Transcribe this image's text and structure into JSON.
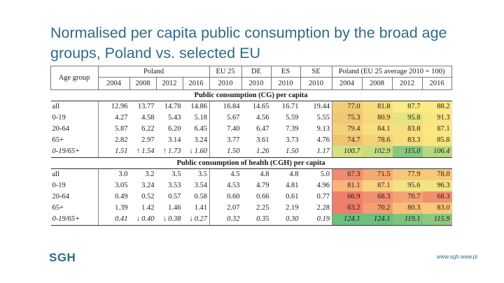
{
  "slide": {
    "title": "Normalised per capita public consumption by the broad age groups, Poland vs. selected EU",
    "logo_text": "SGH",
    "url": "www.sgh.waw.pl"
  },
  "table": {
    "header": {
      "age_group": "Age group",
      "poland": "Poland",
      "eu25": "EU 25",
      "de": "DE",
      "es": "ES",
      "se": "SE",
      "index": "Poland (EU 25 average 2010 = 100)",
      "years": [
        "2004",
        "2008",
        "2012",
        "2016",
        "2010",
        "2010",
        "2010",
        "2010",
        "2004",
        "2008",
        "2012",
        "2016"
      ]
    },
    "section1": "Public consumption (CG) per capita",
    "section2": "Public consumption of health (CGH) per capita",
    "rows1": [
      {
        "label": "all",
        "values": [
          "12.96",
          "13.77",
          "14.78",
          "14.86",
          "16.84",
          "14.65",
          "16.71",
          "19.44",
          "77.0",
          "81.8",
          "87.7",
          "88.2"
        ]
      },
      {
        "label": "0-19",
        "values": [
          "4.27",
          "4.58",
          "5.43",
          "5.18",
          "5.67",
          "4.56",
          "5.59",
          "5.55",
          "75.3",
          "80.9",
          "95.8",
          "91.3"
        ]
      },
      {
        "label": "20-64",
        "values": [
          "5.87",
          "6.22",
          "6.20",
          "6.45",
          "7.40",
          "6.47",
          "7.39",
          "9.13",
          "79.4",
          "84.1",
          "83.8",
          "87.1"
        ]
      },
      {
        "label": "65+",
        "values": [
          "2.82",
          "2.97",
          "3.14",
          "3.24",
          "3.77",
          "3.61",
          "3.73",
          "4.76",
          "74.7",
          "78.6",
          "83.3",
          "85.8"
        ]
      }
    ],
    "ratio1": {
      "label": "0-19/65+",
      "arrows": [
        "",
        "↑",
        "↑",
        "↓"
      ],
      "values": [
        "1.51",
        "1.54",
        "1.73",
        "1.60",
        "1.50",
        "1.26",
        "1.50",
        "1.17",
        "100.7",
        "102.9",
        "115.0",
        "106.4"
      ]
    },
    "rows2": [
      {
        "label": "all",
        "values": [
          "3.0",
          "3.2",
          "3.5",
          "3.5",
          "4.5",
          "4.8",
          "4.8",
          "5.0",
          "67.3",
          "71.5",
          "77.9",
          "78.0"
        ]
      },
      {
        "label": "0-19",
        "values": [
          "3.05",
          "3.24",
          "3.53",
          "3.54",
          "4.53",
          "4.79",
          "4.81",
          "4.96",
          "81.1",
          "87.1",
          "95.6",
          "96.3"
        ]
      },
      {
        "label": "20-64",
        "values": [
          "0.49",
          "0.52",
          "0.57",
          "0.58",
          "0.60",
          "0.66",
          "0.61",
          "0.77",
          "66.9",
          "68.3",
          "70.7",
          "68.3"
        ]
      },
      {
        "label": "65+",
        "values": [
          "1.39",
          "1.42",
          "1.46",
          "1.41",
          "2.07",
          "2.25",
          "2.19",
          "2.28",
          "63.2",
          "70.2",
          "80.3",
          "83.0"
        ]
      }
    ],
    "ratio2": {
      "label": "0-19/65+",
      "arrows": [
        "",
        "↓",
        "↓",
        "↓"
      ],
      "values": [
        "0.41",
        "0.40",
        "0.38",
        "0.27",
        "0.32",
        "0.35",
        "0.30",
        "0.19",
        "124.1",
        "124.1",
        "119.1",
        "115.9"
      ]
    },
    "colors": {
      "rows1": [
        [
          "#f2cd78",
          "#f8dd7e",
          "#fdeb84",
          "#fcea84"
        ],
        [
          "#f1c675",
          "#f7d97d",
          "#e2e483",
          "#f9e583"
        ],
        [
          "#f3d179",
          "#f9df7e",
          "#f9de7e",
          "#fbe782"
        ],
        [
          "#f0c274",
          "#f5d27a",
          "#f9dd7e",
          "#fbe380"
        ]
      ],
      "ratio1": [
        "#d4e182",
        "#c8dd82",
        "#87c87e",
        "#b6d881"
      ],
      "rows2": [
        [
          "#f18b6f",
          "#f5a874",
          "#f9c77a",
          "#f9c87a"
        ],
        [
          "#f7b577",
          "#fbd27d",
          "#f3e483",
          "#f0e483"
        ],
        [
          "#f07f6d",
          "#f28f6f",
          "#f4a373",
          "#f28f6f"
        ],
        [
          "#f07c6c",
          "#f29d72",
          "#f7c079",
          "#f9c87a"
        ]
      ],
      "ratio2": [
        "#6cbf7c",
        "#6cbf7c",
        "#7cc47d",
        "#8cc97e"
      ]
    }
  }
}
